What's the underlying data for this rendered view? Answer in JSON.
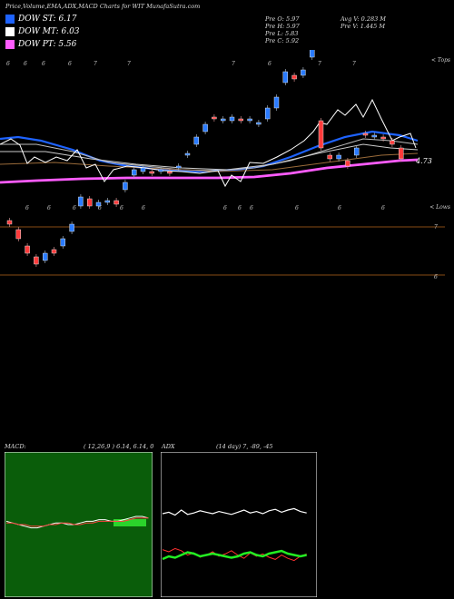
{
  "header": {
    "title": "Price,Volume,EMA,ADX,MACD Charts for WIT MunafaSutra.com"
  },
  "legend": [
    {
      "label": "DOW ST: 6.17",
      "color": "#1e63ff"
    },
    {
      "label": "DOW MT: 6.03",
      "color": "#ffffff"
    },
    {
      "label": "DOW PT: 5.56",
      "color": "#ff5cff"
    }
  ],
  "stats": {
    "col1": [
      "Pre  O: 5.97",
      "Pre  H: 5.97",
      "Pre  L: 5.83",
      "Pre  C: 5.92"
    ],
    "col2": [
      "Avg V: 0.283 M",
      "Pre  V: 1.445 M"
    ]
  },
  "price_panel": {
    "upper_label": "< Tops",
    "lower_label": "< Lows",
    "last_price": "4.73",
    "level_top": "7",
    "level_mid": "6",
    "top_digits": [
      "6",
      "6",
      "6",
      "6",
      "7",
      "7",
      "7",
      "6",
      "7",
      "7"
    ],
    "bottom_digits": [
      "6",
      "6",
      "6",
      "6",
      "6",
      "6",
      "6",
      "6",
      "6",
      "6",
      "6",
      "6"
    ]
  },
  "macd_panel": {
    "label": "MACD:",
    "params": "( 12,26,9 ) 6.14,  6.14,  0"
  },
  "adx_panel": {
    "label": "ADX",
    "params": "(14  day) 7, -89, -45"
  },
  "colors": {
    "up": "#2a7bff",
    "down": "#ff3b3b",
    "ema_short": "#1e63ff",
    "ema_long": "#ff5cff",
    "price_line": "#ffffff",
    "level_line": "#b5651d",
    "macd_bg": "#0a5d0a"
  },
  "chart_data": [
    {
      "type": "candlestick",
      "title": "WIT price",
      "candles": [
        {
          "o": 6.3,
          "c": 6.28
        },
        {
          "o": 6.25,
          "c": 6.2
        },
        {
          "o": 6.16,
          "c": 6.12
        },
        {
          "o": 6.1,
          "c": 6.06
        },
        {
          "o": 6.08,
          "c": 6.12
        },
        {
          "o": 6.14,
          "c": 6.12
        },
        {
          "o": 6.16,
          "c": 6.2
        },
        {
          "o": 6.24,
          "c": 6.28
        },
        {
          "o": 6.38,
          "c": 6.43
        },
        {
          "o": 6.42,
          "c": 6.38
        },
        {
          "o": 6.38,
          "c": 6.4
        },
        {
          "o": 6.4,
          "c": 6.41
        },
        {
          "o": 6.41,
          "c": 6.39
        },
        {
          "o": 6.47,
          "c": 6.51
        },
        {
          "o": 6.55,
          "c": 6.58
        },
        {
          "o": 6.57,
          "c": 6.59
        },
        {
          "o": 6.57,
          "c": 6.56
        },
        {
          "o": 6.58,
          "c": 6.58
        },
        {
          "o": 6.57,
          "c": 6.56
        },
        {
          "o": 6.59,
          "c": 6.6
        },
        {
          "o": 6.66,
          "c": 6.67
        },
        {
          "o": 6.72,
          "c": 6.76
        },
        {
          "o": 6.79,
          "c": 6.83
        },
        {
          "o": 6.87,
          "c": 6.86
        },
        {
          "o": 6.85,
          "c": 6.86
        },
        {
          "o": 6.85,
          "c": 6.87
        },
        {
          "o": 6.86,
          "c": 6.85
        },
        {
          "o": 6.85,
          "c": 6.86
        },
        {
          "o": 6.84,
          "c": 6.84
        },
        {
          "o": 6.86,
          "c": 6.92
        },
        {
          "o": 6.92,
          "c": 6.98
        },
        {
          "o": 7.06,
          "c": 7.12
        },
        {
          "o": 7.1,
          "c": 7.08
        },
        {
          "o": 7.1,
          "c": 7.13
        },
        {
          "o": 7.2,
          "c": 7.27
        },
        {
          "o": 6.85,
          "c": 6.7
        },
        {
          "o": 6.66,
          "c": 6.64
        },
        {
          "o": 6.64,
          "c": 6.66
        },
        {
          "o": 6.63,
          "c": 6.6
        },
        {
          "o": 6.66,
          "c": 6.7
        },
        {
          "o": 6.78,
          "c": 6.77
        },
        {
          "o": 6.77,
          "c": 6.77
        },
        {
          "o": 6.76,
          "c": 6.75
        },
        {
          "o": 6.74,
          "c": 6.72
        },
        {
          "o": 6.7,
          "c": 6.64
        }
      ]
    },
    {
      "type": "line",
      "title": "MACD",
      "series": [
        {
          "name": "MACD",
          "values": [
            0.02,
            0.01,
            0.0,
            -0.01,
            -0.02,
            -0.02,
            -0.01,
            0.0,
            0.01,
            0.01,
            0.0,
            0.0,
            0.01,
            0.02,
            0.02,
            0.03,
            0.03,
            0.02,
            0.02,
            0.03,
            0.04,
            0.05,
            0.05,
            0.04
          ]
        },
        {
          "name": "Signal",
          "values": [
            0.01,
            0.01,
            0.0,
            0.0,
            -0.01,
            -0.01,
            -0.01,
            0.0,
            0.0,
            0.01,
            0.01,
            0.0,
            0.0,
            0.01,
            0.01,
            0.02,
            0.02,
            0.02,
            0.02,
            0.02,
            0.03,
            0.04,
            0.04,
            0.04
          ]
        }
      ]
    },
    {
      "type": "line",
      "title": "ADX",
      "series": [
        {
          "name": "+DI",
          "values": [
            20,
            22,
            18,
            25,
            19,
            21,
            24,
            22,
            20,
            23,
            21,
            19,
            22,
            25,
            21,
            23,
            20,
            24,
            26,
            22,
            25,
            27,
            23,
            21
          ]
        },
        {
          "name": "-DI",
          "values": [
            35,
            33,
            36,
            34,
            30,
            32,
            28,
            30,
            33,
            29,
            31,
            34,
            30,
            27,
            32,
            29,
            31,
            28,
            26,
            30,
            27,
            25,
            29,
            31
          ]
        },
        {
          "name": "ADX",
          "values": [
            28,
            30,
            29,
            31,
            33,
            32,
            30,
            31,
            32,
            31,
            30,
            29,
            30,
            32,
            33,
            31,
            30,
            32,
            33,
            34,
            32,
            31,
            30,
            31
          ]
        }
      ]
    }
  ]
}
